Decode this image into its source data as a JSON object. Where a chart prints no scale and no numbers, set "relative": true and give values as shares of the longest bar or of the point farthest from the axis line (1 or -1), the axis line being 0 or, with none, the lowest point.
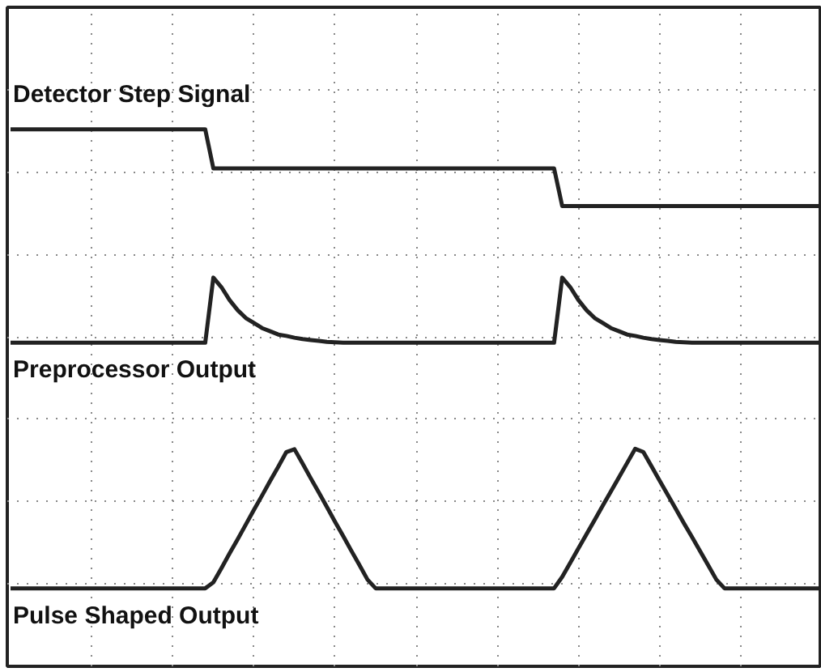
{
  "chart_data": {
    "type": "line",
    "relative": true,
    "grid": true,
    "line_style": "solid",
    "marker": "none",
    "categories": [
      null,
      null,
      null,
      null,
      null,
      null,
      null,
      null,
      null,
      null,
      null,
      null,
      null,
      null,
      null,
      null,
      null,
      null,
      null,
      null,
      null,
      null,
      null,
      null,
      null,
      null,
      null,
      null,
      null,
      null,
      null,
      null,
      null,
      null,
      null,
      null,
      null,
      null,
      null,
      null,
      null,
      null,
      null,
      null,
      null,
      null,
      null,
      null,
      null,
      null,
      null,
      null,
      null,
      null,
      null,
      null,
      null,
      null,
      null,
      null,
      null,
      null,
      null,
      null,
      null,
      null,
      null,
      null,
      null,
      null,
      null,
      null,
      null,
      null,
      null,
      null,
      null,
      null,
      null,
      null,
      null,
      null,
      null,
      null,
      null,
      null,
      null,
      null,
      null,
      null,
      null,
      null,
      null,
      null,
      null,
      null,
      null,
      null,
      null,
      null,
      null
    ],
    "series": [
      {
        "name": "Detector Step Signal",
        "color": "#222222",
        "values": [
          1,
          1,
          1,
          1,
          1,
          1,
          1,
          1,
          1,
          1,
          1,
          1,
          1,
          1,
          1,
          1,
          1,
          1,
          1,
          1,
          1,
          1,
          1,
          1,
          1,
          0.915,
          0.915,
          0.915,
          0.915,
          0.915,
          0.915,
          0.915,
          0.915,
          0.915,
          0.915,
          0.915,
          0.915,
          0.915,
          0.915,
          0.915,
          0.915,
          0.915,
          0.915,
          0.915,
          0.915,
          0.915,
          0.915,
          0.915,
          0.915,
          0.915,
          0.915,
          0.915,
          0.915,
          0.915,
          0.915,
          0.915,
          0.915,
          0.915,
          0.915,
          0.915,
          0.915,
          0.915,
          0.915,
          0.915,
          0.915,
          0.915,
          0.915,
          0.915,
          0.833,
          0.833,
          0.833,
          0.833,
          0.833,
          0.833,
          0.833,
          0.833,
          0.833,
          0.833,
          0.833,
          0.833,
          0.833,
          0.833,
          0.833,
          0.833,
          0.833,
          0.833,
          0.833,
          0.833,
          0.833,
          0.833,
          0.833,
          0.833,
          0.833,
          0.833,
          0.833,
          0.833,
          0.833,
          0.833,
          0.833,
          0.833,
          0.833
        ]
      },
      {
        "name": "Preprocessor Output",
        "color": "#222222",
        "values": [
          0.535,
          0.535,
          0.535,
          0.535,
          0.535,
          0.535,
          0.535,
          0.535,
          0.535,
          0.535,
          0.535,
          0.535,
          0.535,
          0.535,
          0.535,
          0.535,
          0.535,
          0.535,
          0.535,
          0.535,
          0.535,
          0.535,
          0.535,
          0.535,
          0.535,
          0.677,
          0.656,
          0.628,
          0.606,
          0.589,
          0.578,
          0.567,
          0.56,
          0.553,
          0.55,
          0.546,
          0.543,
          0.541,
          0.539,
          0.537,
          0.536,
          0.535,
          0.535,
          0.535,
          0.535,
          0.535,
          0.535,
          0.535,
          0.535,
          0.535,
          0.535,
          0.535,
          0.535,
          0.535,
          0.535,
          0.535,
          0.535,
          0.535,
          0.535,
          0.535,
          0.535,
          0.535,
          0.535,
          0.535,
          0.535,
          0.535,
          0.535,
          0.535,
          0.677,
          0.656,
          0.628,
          0.606,
          0.589,
          0.578,
          0.567,
          0.56,
          0.553,
          0.55,
          0.546,
          0.543,
          0.541,
          0.539,
          0.537,
          0.536,
          0.535,
          0.535,
          0.535,
          0.535,
          0.535,
          0.535,
          0.535,
          0.535,
          0.535,
          0.535,
          0.535,
          0.535,
          0.535,
          0.535,
          0.535,
          0.535,
          0.535
        ]
      },
      {
        "name": "Pulse Shaped Output",
        "color": "#222222",
        "values": [
          0,
          0,
          0,
          0,
          0,
          0,
          0,
          0,
          0,
          0,
          0,
          0,
          0,
          0,
          0,
          0,
          0,
          0,
          0,
          0,
          0,
          0,
          0,
          0,
          0,
          0.013,
          0.044,
          0.076,
          0.107,
          0.139,
          0.171,
          0.202,
          0.234,
          0.265,
          0.297,
          0.303,
          0.272,
          0.24,
          0.209,
          0.177,
          0.145,
          0.114,
          0.082,
          0.051,
          0.019,
          0,
          0,
          0,
          0,
          0,
          0,
          0,
          0,
          0,
          0,
          0,
          0,
          0,
          0,
          0,
          0,
          0,
          0,
          0,
          0,
          0,
          0,
          0,
          0.025,
          0.056,
          0.087,
          0.118,
          0.149,
          0.18,
          0.211,
          0.242,
          0.273,
          0.304,
          0.297,
          0.266,
          0.235,
          0.204,
          0.173,
          0.142,
          0.112,
          0.081,
          0.05,
          0.019,
          0,
          0,
          0,
          0,
          0,
          0,
          0,
          0,
          0,
          0,
          0,
          0,
          0
        ]
      }
    ]
  }
}
